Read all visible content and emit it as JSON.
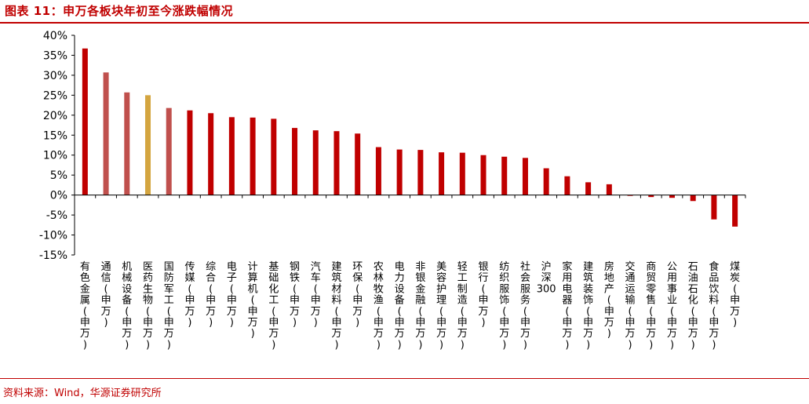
{
  "header": {
    "title": "图表 11：申万各板块年初至今涨跌幅情况"
  },
  "footer": {
    "source": "资料来源：Wind，华源证券研究所"
  },
  "colors": {
    "bar": "#c00000",
    "highlight_alt": "#c0504d",
    "highlight_gold": "#d4a540",
    "rule": "#c00000"
  },
  "chart_data": {
    "type": "bar",
    "title": "",
    "xlabel": "",
    "ylabel": "",
    "ylim": [
      -15,
      40
    ],
    "ytick_step": 5,
    "ytick_format": "percent",
    "grid": false,
    "categories": [
      "有色金属(申万)",
      "通信(申万)",
      "机械设备(申万)",
      "医药生物(申万)",
      "国防军工(申万)",
      "传媒(申万)",
      "综合(申万)",
      "电子(申万)",
      "计算机(申万)",
      "基础化工(申万)",
      "钢铁(申万)",
      "汽车(申万)",
      "建筑材料(申万)",
      "环保(申万)",
      "农林牧渔(申万)",
      "电力设备(申万)",
      "非银金融(申万)",
      "美容护理(申万)",
      "轻工制造(申万)",
      "银行(申万)",
      "纺织服饰(申万)",
      "社会服务(申万)",
      "沪深300",
      "家用电器(申万)",
      "建筑装饰(申万)",
      "房地产(申万)",
      "交通运输(申万)",
      "商贸零售(申万)",
      "公用事业(申万)",
      "石油石化(申万)",
      "食品饮料(申万)",
      "煤炭(申万)"
    ],
    "values": [
      36.7,
      30.7,
      25.7,
      25.0,
      21.8,
      21.2,
      20.5,
      19.5,
      19.4,
      19.1,
      16.8,
      16.2,
      16.0,
      15.4,
      12.0,
      11.4,
      11.3,
      10.7,
      10.6,
      10.0,
      9.6,
      9.3,
      6.7,
      4.7,
      3.2,
      2.7,
      -0.2,
      -0.5,
      -0.7,
      -1.5,
      -6.1,
      -7.9
    ],
    "bar_colors": [
      "#c00000",
      "#c0504d",
      "#c0504d",
      "#d4a540",
      "#c0504d",
      "#c00000",
      "#c00000",
      "#c00000",
      "#c00000",
      "#c00000",
      "#c00000",
      "#c00000",
      "#c00000",
      "#c00000",
      "#c00000",
      "#c00000",
      "#c00000",
      "#c00000",
      "#c00000",
      "#c00000",
      "#c00000",
      "#c00000",
      "#c00000",
      "#c00000",
      "#c00000",
      "#c00000",
      "#c00000",
      "#c00000",
      "#c00000",
      "#c00000",
      "#c00000",
      "#c00000"
    ]
  }
}
